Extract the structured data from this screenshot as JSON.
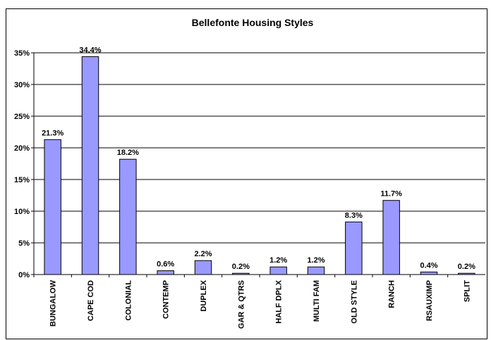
{
  "chart_data": {
    "type": "bar",
    "title": "Bellefonte Housing Styles",
    "categories": [
      "BUNGALOW",
      "CAPE COD",
      "COLONIAL",
      "CONTEMP",
      "DUPLEX",
      "GAR & QTRS",
      "HALF DPLX",
      "MULTI FAM",
      "OLD STYLE",
      "RANCH",
      "RSAUXIMP",
      "SPLIT"
    ],
    "values": [
      21.3,
      34.4,
      18.2,
      0.6,
      2.2,
      0.2,
      1.2,
      1.2,
      8.3,
      11.7,
      0.4,
      0.2
    ],
    "value_labels": [
      "21.3%",
      "34.4%",
      "18.2%",
      "0.6%",
      "2.2%",
      "0.2%",
      "1.2%",
      "1.2%",
      "8.3%",
      "11.7%",
      "0.4%",
      "0.2%"
    ],
    "color": "#9999ff",
    "ylim": [
      0,
      35
    ],
    "yticks": [
      {
        "value": 0,
        "label": "0%"
      },
      {
        "value": 5,
        "label": "5%"
      },
      {
        "value": 10,
        "label": "10%"
      },
      {
        "value": 15,
        "label": "15%"
      },
      {
        "value": 20,
        "label": "20%"
      },
      {
        "value": 25,
        "label": "25%"
      },
      {
        "value": 30,
        "label": "30%"
      },
      {
        "value": 35,
        "label": "35%"
      }
    ],
    "grid": true
  }
}
